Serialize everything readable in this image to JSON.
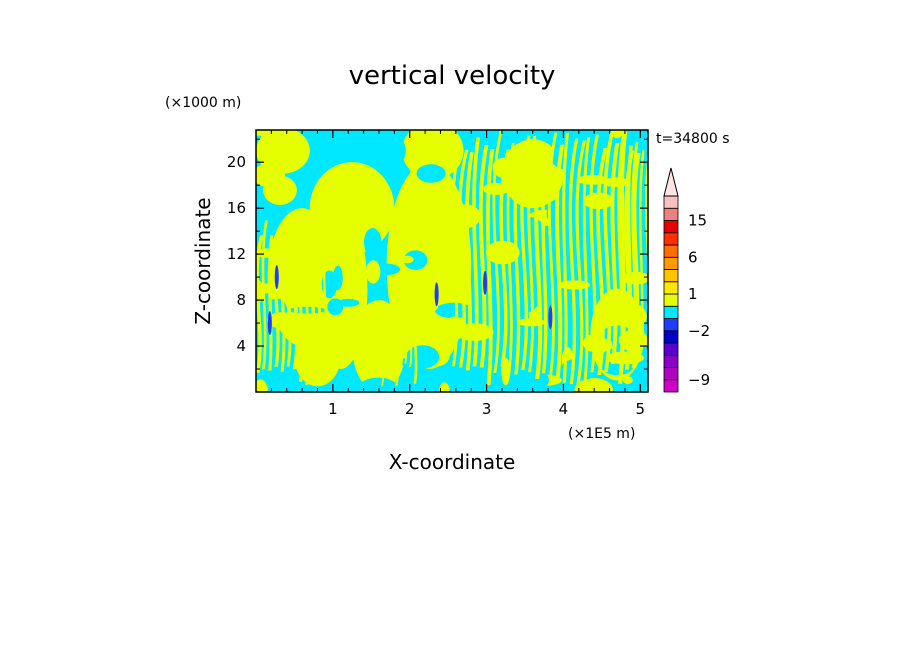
{
  "chart_data": {
    "type": "heatmap",
    "title": "vertical velocity",
    "xlabel": "X-coordinate",
    "ylabel": "Z-coordinate",
    "x_unit": "(×1E5 m)",
    "y_unit": "(×1000 m)",
    "time_label": "t=34800 s",
    "xlim": [
      0,
      5.1
    ],
    "ylim": [
      0,
      22.8
    ],
    "x_ticks": [
      1,
      2,
      3,
      4,
      5
    ],
    "y_ticks": [
      4,
      8,
      12,
      16,
      20
    ],
    "dominant_fields": [
      {
        "name": "positive-small",
        "color": "#e6ff00"
      },
      {
        "name": "negative-small",
        "color": "#00e8ff"
      }
    ],
    "colorbar": {
      "labels": [
        {
          "text": "15",
          "value": 15
        },
        {
          "text": "6",
          "value": 6
        },
        {
          "text": "1",
          "value": 1
        },
        {
          "text": "−2",
          "value": -2
        },
        {
          "text": "−9",
          "value": -9
        }
      ],
      "levels": [
        {
          "lo": -12,
          "hi": -9,
          "color": "#d000c8"
        },
        {
          "lo": -9,
          "hi": -7,
          "color": "#b000c0"
        },
        {
          "lo": -7,
          "hi": -5,
          "color": "#8a00c8"
        },
        {
          "lo": -5,
          "hi": -3,
          "color": "#5a00d0"
        },
        {
          "lo": -3,
          "hi": -2,
          "color": "#0000c8"
        },
        {
          "lo": -2,
          "hi": -1,
          "color": "#1e3cff"
        },
        {
          "lo": -1,
          "hi": 0,
          "color": "#00e8ff"
        },
        {
          "lo": 0,
          "hi": 1,
          "color": "#e6ff00"
        },
        {
          "lo": 1,
          "hi": 2,
          "color": "#ffe600"
        },
        {
          "lo": 2,
          "hi": 4,
          "color": "#ffc400"
        },
        {
          "lo": 4,
          "hi": 6,
          "color": "#ff9a00"
        },
        {
          "lo": 6,
          "hi": 9,
          "color": "#ff6e00"
        },
        {
          "lo": 9,
          "hi": 12,
          "color": "#ff3000"
        },
        {
          "lo": 12,
          "hi": 15,
          "color": "#e80000"
        },
        {
          "lo": 15,
          "hi": 18,
          "color": "#f08080"
        },
        {
          "lo": 18,
          "hi": 24,
          "color": "#f8c0c0"
        }
      ],
      "overflow_color": "#ffe4e4"
    }
  }
}
